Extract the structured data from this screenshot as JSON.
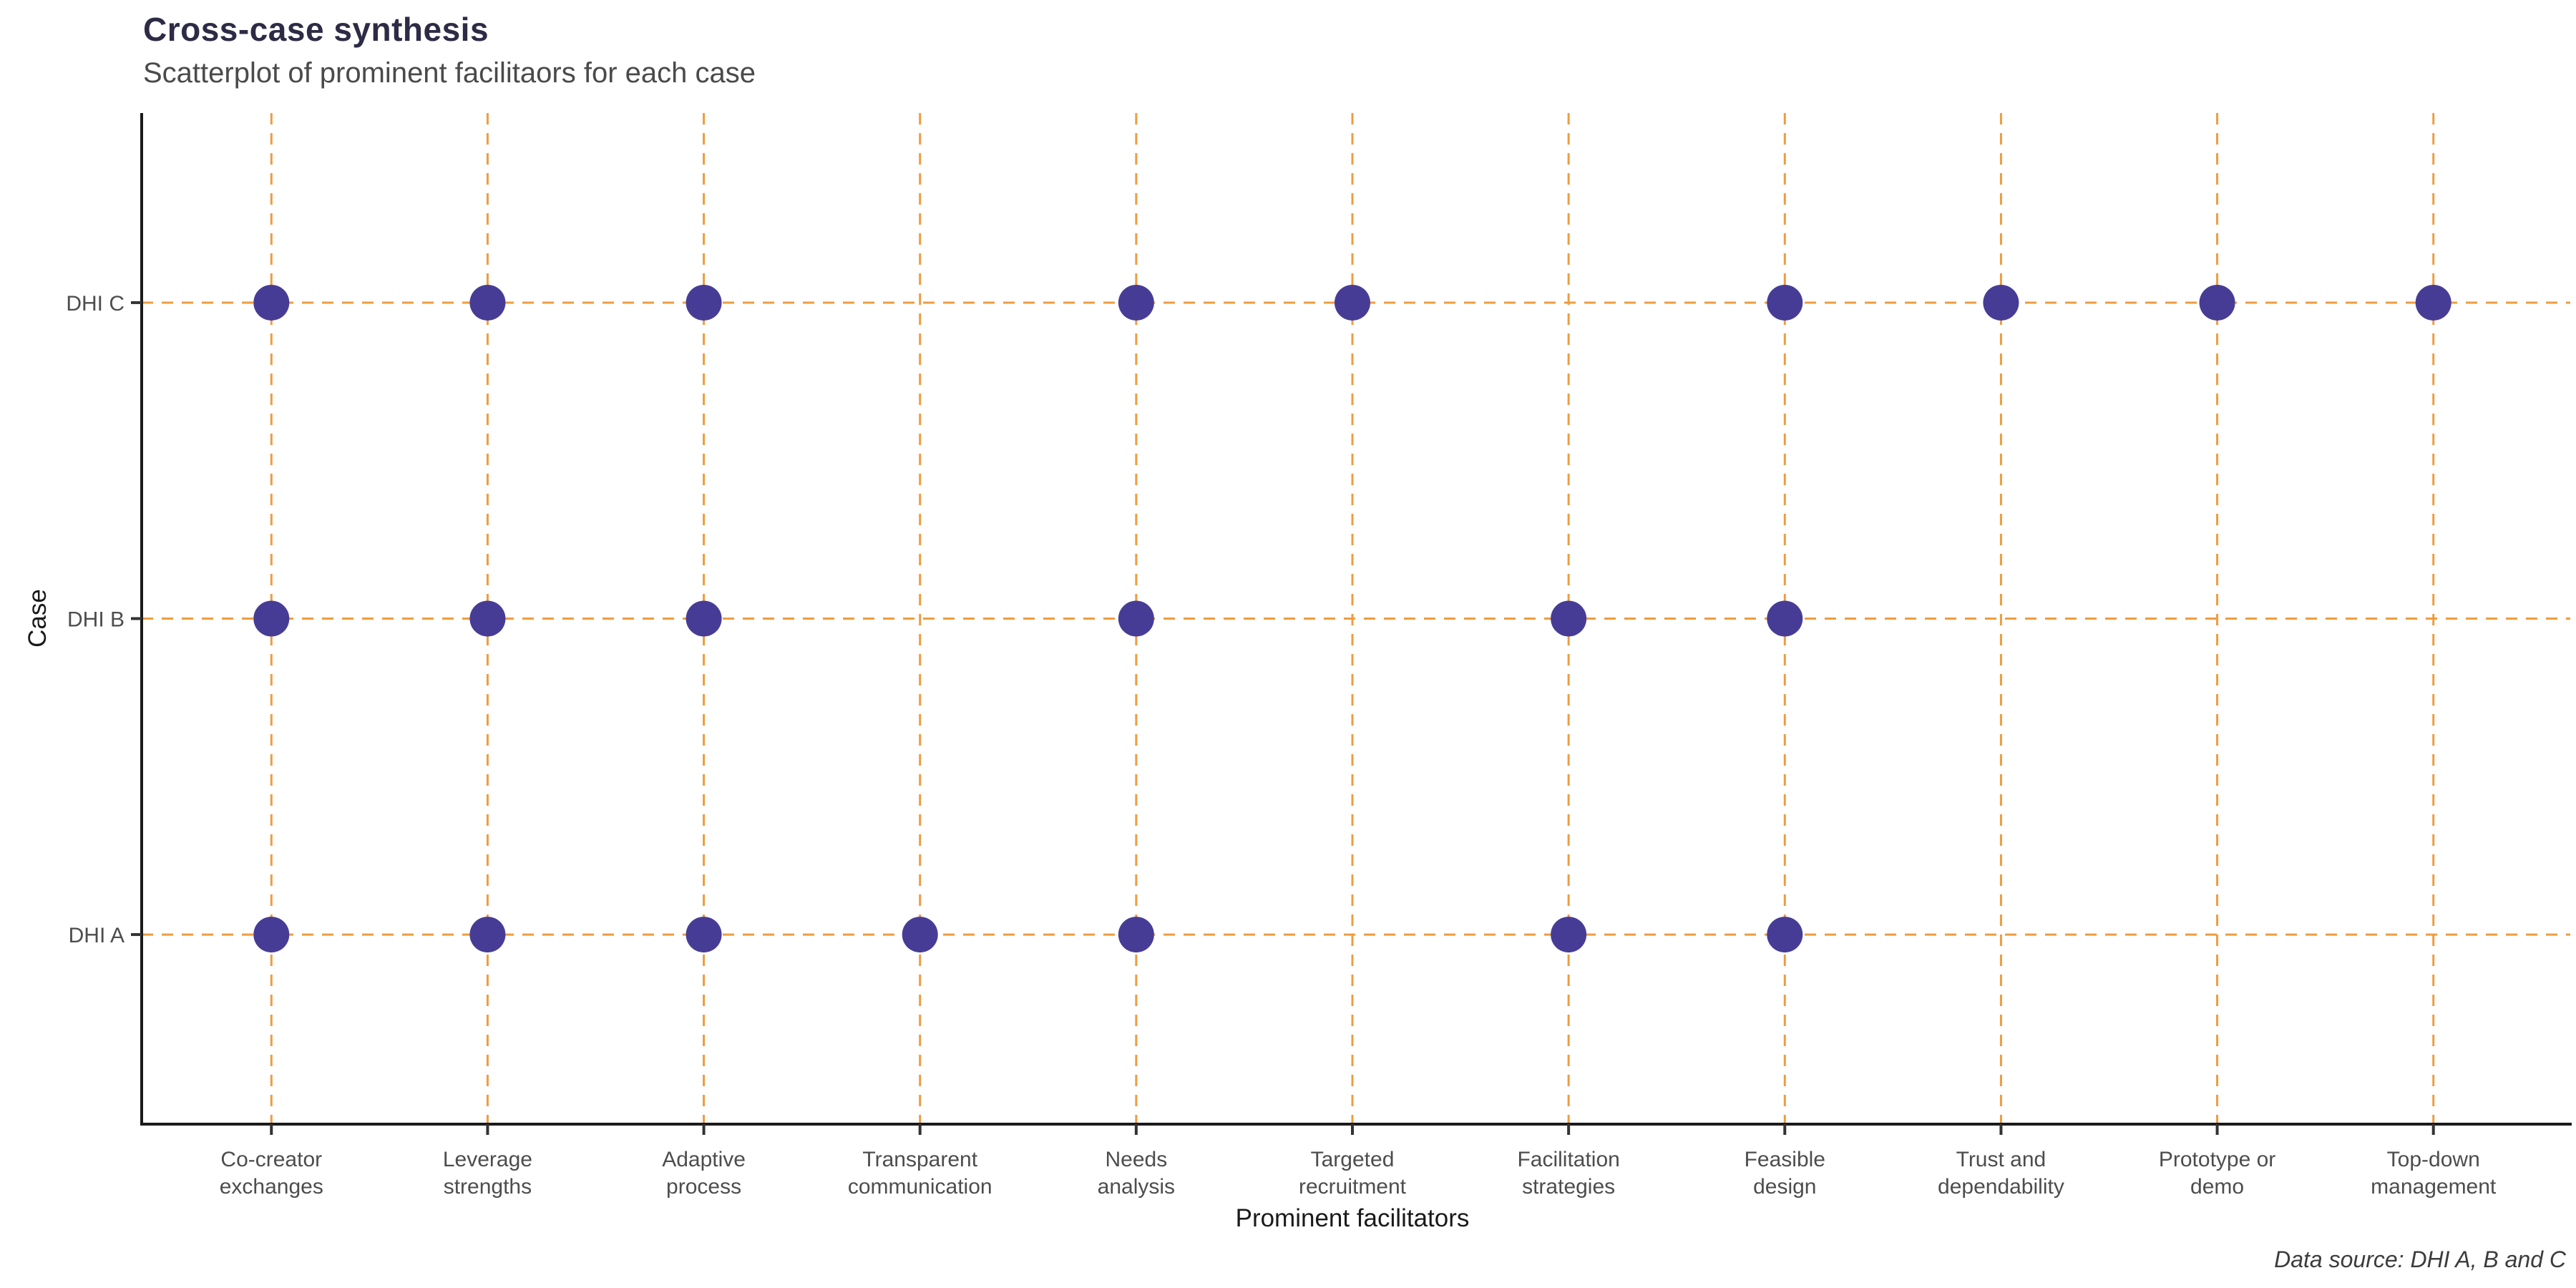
{
  "header": {
    "title": "Cross-case synthesis",
    "subtitle": "Scatterplot of prominent facilitaors for each case"
  },
  "caption": "Data source: DHI A, B and C",
  "chart_data": {
    "type": "scatter",
    "title": "Cross-case synthesis",
    "subtitle": "Scatterplot of prominent facilitaors for each case",
    "xlabel": "Prominent facilitators",
    "ylabel": "Case",
    "x_categories": [
      "Co-creator exchanges",
      "Leverage strengths",
      "Adaptive process",
      "Transparent communication",
      "Needs analysis",
      "Targeted recruitment",
      "Facilitation strategies",
      "Feasible design",
      "Trust and dependability",
      "Prototype or demo",
      "Top-down management"
    ],
    "x_category_label_lines": [
      [
        "Co-creator",
        "exchanges"
      ],
      [
        "Leverage",
        "strengths"
      ],
      [
        "Adaptive",
        "process"
      ],
      [
        "Transparent",
        "communication"
      ],
      [
        "Needs",
        "analysis"
      ],
      [
        "Targeted",
        "recruitment"
      ],
      [
        "Facilitation",
        "strategies"
      ],
      [
        "Feasible",
        "design"
      ],
      [
        "Trust and",
        "dependability"
      ],
      [
        "Prototype or",
        "demo"
      ],
      [
        "Top-down",
        "management"
      ]
    ],
    "y_categories": [
      "DHI A",
      "DHI B",
      "DHI C"
    ],
    "series": [
      {
        "case": "DHI A",
        "facilitators": [
          "Co-creator exchanges",
          "Leverage strengths",
          "Adaptive process",
          "Transparent communication",
          "Needs analysis",
          "Facilitation strategies",
          "Feasible design"
        ]
      },
      {
        "case": "DHI B",
        "facilitators": [
          "Co-creator exchanges",
          "Leverage strengths",
          "Adaptive process",
          "Needs analysis",
          "Facilitation strategies",
          "Feasible design"
        ]
      },
      {
        "case": "DHI C",
        "facilitators": [
          "Co-creator exchanges",
          "Leverage strengths",
          "Adaptive process",
          "Needs analysis",
          "Targeted recruitment",
          "Feasible design",
          "Trust and dependability",
          "Prototype or demo",
          "Top-down management"
        ]
      }
    ],
    "layout_hints": {
      "grid": "dashed gridline at every x and y category, both directions",
      "legend": "none",
      "point_shape": "circle"
    },
    "colors": {
      "point": "#473c95",
      "gridline": "#ee9c3f",
      "axis_line": "#1a1a1a",
      "tick_mark": "#333333",
      "axis_text": "#4d4d4d",
      "axis_title": "#1a1a1a",
      "title": "#2d2b45",
      "subtitle": "#4a4a4a",
      "caption": "#3c3c3c",
      "background": "#ffffff"
    }
  }
}
